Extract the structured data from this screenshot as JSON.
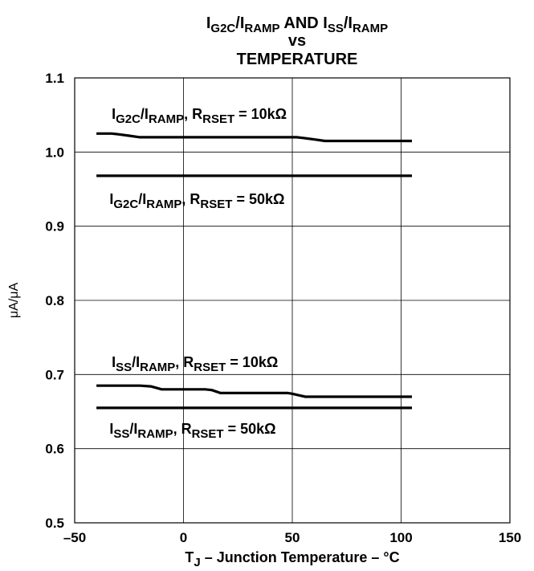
{
  "chart_data": {
    "type": "line",
    "title": {
      "line1_parts": [
        {
          "text": "I",
          "sub": false
        },
        {
          "text": "G2C",
          "sub": true
        },
        {
          "text": "/I",
          "sub": false
        },
        {
          "text": "RAMP",
          "sub": true
        },
        {
          "text": " AND I",
          "sub": false
        },
        {
          "text": "SS",
          "sub": true
        },
        {
          "text": "/I",
          "sub": false
        },
        {
          "text": "RAMP",
          "sub": true
        }
      ],
      "line2": "vs",
      "line3": "TEMPERATURE"
    },
    "xlabel_parts": [
      {
        "text": "T",
        "sub": false
      },
      {
        "text": "J",
        "sub": true
      },
      {
        "text": " – Junction Temperature – °C",
        "sub": false
      }
    ],
    "ylabel": "μA/μA",
    "xlim": [
      -50,
      150
    ],
    "ylim": [
      0.5,
      1.1
    ],
    "xticks": [
      -50,
      0,
      50,
      100,
      150
    ],
    "xtick_labels": [
      "–50",
      "0",
      "50",
      "100",
      "150"
    ],
    "yticks": [
      0.5,
      0.6,
      0.7,
      0.8,
      0.9,
      1.0,
      1.1
    ],
    "ytick_labels": [
      "0.5",
      "0.6",
      "0.7",
      "0.8",
      "0.9",
      "1.0",
      "1.1"
    ],
    "grid": true,
    "series": [
      {
        "label_parts": [
          {
            "text": "I",
            "sub": false
          },
          {
            "text": "G2C",
            "sub": true
          },
          {
            "text": "/I",
            "sub": false
          },
          {
            "text": "RAMP",
            "sub": true
          },
          {
            "text": ", R",
            "sub": false
          },
          {
            "text": "RSET",
            "sub": true
          },
          {
            "text": " = 10kΩ",
            "sub": false
          }
        ],
        "label_anchor": {
          "x": -33,
          "y": 1.045
        },
        "x": [
          -40,
          -33,
          -30,
          -25,
          -20,
          0,
          20,
          40,
          52,
          55,
          60,
          65,
          70,
          80,
          90,
          100,
          105
        ],
        "y": [
          1.025,
          1.025,
          1.024,
          1.022,
          1.02,
          1.02,
          1.02,
          1.02,
          1.02,
          1.019,
          1.017,
          1.015,
          1.015,
          1.015,
          1.015,
          1.015,
          1.015
        ]
      },
      {
        "label_parts": [
          {
            "text": "I",
            "sub": false
          },
          {
            "text": "G2C",
            "sub": true
          },
          {
            "text": "/I",
            "sub": false
          },
          {
            "text": "RAMP",
            "sub": true
          },
          {
            "text": ", R",
            "sub": false
          },
          {
            "text": "RSET",
            "sub": true
          },
          {
            "text": " = 50kΩ",
            "sub": false
          }
        ],
        "label_anchor": {
          "x": -34,
          "y": 0.93
        },
        "x": [
          -40,
          105
        ],
        "y": [
          0.968,
          0.968
        ]
      },
      {
        "label_parts": [
          {
            "text": "I",
            "sub": false
          },
          {
            "text": "SS",
            "sub": true
          },
          {
            "text": "/I",
            "sub": false
          },
          {
            "text": "RAMP",
            "sub": true
          },
          {
            "text": ", R",
            "sub": false
          },
          {
            "text": "RSET",
            "sub": true
          },
          {
            "text": " = 10kΩ",
            "sub": false
          }
        ],
        "label_anchor": {
          "x": -33,
          "y": 0.71
        },
        "x": [
          -40,
          -25,
          -20,
          -15,
          -10,
          0,
          10,
          13,
          17,
          20,
          30,
          40,
          48,
          50,
          53,
          56,
          60,
          70,
          80,
          90,
          100,
          105
        ],
        "y": [
          0.685,
          0.685,
          0.685,
          0.684,
          0.68,
          0.68,
          0.68,
          0.679,
          0.675,
          0.675,
          0.675,
          0.675,
          0.675,
          0.674,
          0.672,
          0.67,
          0.67,
          0.67,
          0.67,
          0.67,
          0.67,
          0.67
        ]
      },
      {
        "label_parts": [
          {
            "text": "I",
            "sub": false
          },
          {
            "text": "SS",
            "sub": true
          },
          {
            "text": "/I",
            "sub": false
          },
          {
            "text": "RAMP",
            "sub": true
          },
          {
            "text": ", R",
            "sub": false
          },
          {
            "text": "RSET",
            "sub": true
          },
          {
            "text": " = 50kΩ",
            "sub": false
          }
        ],
        "label_anchor": {
          "x": -34,
          "y": 0.62
        },
        "x": [
          -40,
          105
        ],
        "y": [
          0.655,
          0.655
        ]
      }
    ],
    "line_color": "#000000",
    "grid_color": "#000000"
  }
}
